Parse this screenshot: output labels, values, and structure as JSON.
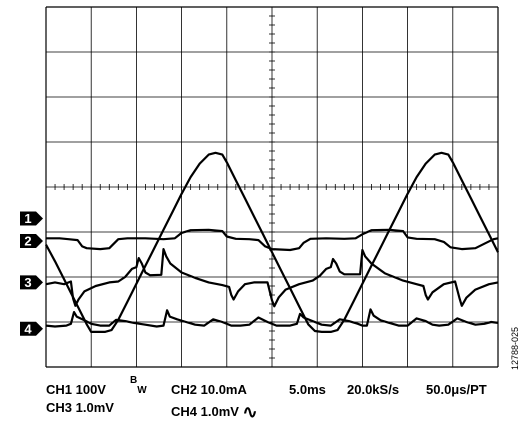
{
  "chart_data": {
    "type": "line",
    "title": "",
    "grid": true,
    "divisions": {
      "horizontal": 10,
      "vertical": 8
    },
    "x_scale": "5.0ms/div",
    "channel_markers": [
      "1",
      "2",
      "3",
      "4"
    ],
    "series": [
      {
        "channel": "1",
        "scale": "100V",
        "baseline_div": 3.3,
        "points": [
          [
            0,
            2.72
          ],
          [
            0.2,
            2.35
          ],
          [
            0.4,
            1.95
          ],
          [
            0.6,
            1.55
          ],
          [
            0.8,
            1.15
          ],
          [
            0.9,
            0.95
          ],
          [
            1.0,
            0.78
          ],
          [
            1.1,
            0.78
          ],
          [
            1.3,
            0.78
          ],
          [
            1.45,
            0.82
          ],
          [
            1.6,
            1.05
          ],
          [
            1.8,
            1.45
          ],
          [
            2.0,
            1.85
          ],
          [
            2.2,
            2.25
          ],
          [
            2.4,
            2.65
          ],
          [
            2.6,
            3.05
          ],
          [
            2.8,
            3.45
          ],
          [
            3.0,
            3.85
          ],
          [
            3.2,
            4.22
          ],
          [
            3.4,
            4.52
          ],
          [
            3.6,
            4.72
          ],
          [
            3.75,
            4.76
          ],
          [
            3.9,
            4.72
          ],
          [
            4.0,
            4.55
          ],
          [
            4.2,
            4.15
          ],
          [
            4.4,
            3.75
          ],
          [
            4.6,
            3.35
          ],
          [
            4.8,
            2.95
          ],
          [
            5.0,
            2.55
          ],
          [
            5.2,
            2.15
          ],
          [
            5.4,
            1.75
          ],
          [
            5.6,
            1.35
          ],
          [
            5.8,
            0.95
          ],
          [
            5.95,
            0.8
          ],
          [
            6.1,
            0.78
          ],
          [
            6.3,
            0.78
          ],
          [
            6.45,
            0.82
          ],
          [
            6.6,
            1.05
          ],
          [
            6.8,
            1.45
          ],
          [
            7.0,
            1.85
          ],
          [
            7.2,
            2.25
          ],
          [
            7.4,
            2.65
          ],
          [
            7.6,
            3.05
          ],
          [
            7.8,
            3.45
          ],
          [
            8.0,
            3.85
          ],
          [
            8.2,
            4.22
          ],
          [
            8.4,
            4.52
          ],
          [
            8.6,
            4.72
          ],
          [
            8.75,
            4.76
          ],
          [
            8.9,
            4.72
          ],
          [
            9.0,
            4.55
          ],
          [
            9.2,
            4.15
          ],
          [
            9.4,
            3.75
          ],
          [
            9.6,
            3.35
          ],
          [
            9.8,
            2.95
          ],
          [
            10,
            2.55
          ]
        ]
      },
      {
        "channel": "2",
        "scale": "10.0mA",
        "baseline_div": 2.8,
        "points": [
          [
            0,
            2.86
          ],
          [
            0.3,
            2.86
          ],
          [
            0.5,
            2.84
          ],
          [
            0.7,
            2.82
          ],
          [
            0.8,
            2.68
          ],
          [
            0.9,
            2.64
          ],
          [
            1.2,
            2.62
          ],
          [
            1.4,
            2.64
          ],
          [
            1.5,
            2.74
          ],
          [
            1.6,
            2.84
          ],
          [
            1.8,
            2.86
          ],
          [
            2.2,
            2.86
          ],
          [
            2.6,
            2.84
          ],
          [
            2.85,
            2.86
          ],
          [
            3.0,
            2.98
          ],
          [
            3.2,
            3.04
          ],
          [
            3.6,
            3.05
          ],
          [
            3.9,
            3.02
          ],
          [
            4.0,
            2.9
          ],
          [
            4.2,
            2.85
          ],
          [
            4.5,
            2.84
          ],
          [
            4.7,
            2.82
          ],
          [
            4.85,
            2.68
          ],
          [
            5.0,
            2.62
          ],
          [
            5.4,
            2.6
          ],
          [
            5.6,
            2.64
          ],
          [
            5.7,
            2.76
          ],
          [
            5.85,
            2.85
          ],
          [
            6.2,
            2.86
          ],
          [
            6.6,
            2.85
          ],
          [
            6.85,
            2.86
          ],
          [
            7.0,
            2.95
          ],
          [
            7.2,
            3.04
          ],
          [
            7.6,
            3.05
          ],
          [
            7.9,
            3.02
          ],
          [
            8.0,
            2.88
          ],
          [
            8.2,
            2.85
          ],
          [
            8.6,
            2.84
          ],
          [
            8.8,
            2.78
          ],
          [
            8.95,
            2.66
          ],
          [
            9.2,
            2.62
          ],
          [
            9.5,
            2.64
          ],
          [
            9.7,
            2.74
          ],
          [
            9.9,
            2.84
          ],
          [
            10,
            2.86
          ]
        ]
      },
      {
        "channel": "3",
        "scale": "1.0mV",
        "baseline_div": 1.88,
        "points": [
          [
            0,
            1.84
          ],
          [
            0.2,
            1.88
          ],
          [
            0.4,
            1.84
          ],
          [
            0.55,
            1.9
          ],
          [
            0.6,
            1.52
          ],
          [
            0.65,
            1.36
          ],
          [
            0.72,
            1.5
          ],
          [
            0.85,
            1.68
          ],
          [
            1.1,
            1.8
          ],
          [
            1.4,
            1.88
          ],
          [
            1.6,
            1.9
          ],
          [
            1.75,
            2.0
          ],
          [
            1.9,
            2.18
          ],
          [
            2.0,
            2.22
          ],
          [
            2.05,
            2.42
          ],
          [
            2.12,
            2.3
          ],
          [
            2.2,
            2.1
          ],
          [
            2.3,
            2.04
          ],
          [
            2.55,
            2.05
          ],
          [
            2.6,
            2.62
          ],
          [
            2.66,
            2.46
          ],
          [
            2.75,
            2.3
          ],
          [
            3.0,
            2.1
          ],
          [
            3.3,
            1.98
          ],
          [
            3.6,
            1.88
          ],
          [
            3.9,
            1.82
          ],
          [
            4.05,
            1.78
          ],
          [
            4.1,
            1.6
          ],
          [
            4.15,
            1.5
          ],
          [
            4.25,
            1.68
          ],
          [
            4.4,
            1.84
          ],
          [
            4.6,
            1.88
          ],
          [
            4.9,
            1.88
          ],
          [
            5.0,
            1.48
          ],
          [
            5.05,
            1.35
          ],
          [
            5.15,
            1.55
          ],
          [
            5.3,
            1.72
          ],
          [
            5.6,
            1.84
          ],
          [
            5.9,
            1.92
          ],
          [
            6.05,
            2.02
          ],
          [
            6.2,
            2.18
          ],
          [
            6.3,
            2.22
          ],
          [
            6.35,
            2.4
          ],
          [
            6.42,
            2.3
          ],
          [
            6.5,
            2.12
          ],
          [
            6.6,
            2.06
          ],
          [
            6.8,
            2.06
          ],
          [
            6.95,
            2.06
          ],
          [
            7.0,
            2.6
          ],
          [
            7.06,
            2.46
          ],
          [
            7.2,
            2.3
          ],
          [
            7.5,
            2.08
          ],
          [
            7.9,
            1.92
          ],
          [
            8.2,
            1.84
          ],
          [
            8.35,
            1.8
          ],
          [
            8.4,
            1.6
          ],
          [
            8.45,
            1.5
          ],
          [
            8.55,
            1.66
          ],
          [
            8.8,
            1.84
          ],
          [
            9.05,
            1.9
          ],
          [
            9.15,
            1.52
          ],
          [
            9.2,
            1.36
          ],
          [
            9.3,
            1.54
          ],
          [
            9.5,
            1.72
          ],
          [
            9.8,
            1.84
          ],
          [
            10,
            1.88
          ]
        ]
      },
      {
        "channel": "4",
        "scale": "1.0mV",
        "baseline_div": 0.85,
        "points": [
          [
            0,
            0.92
          ],
          [
            0.2,
            0.9
          ],
          [
            0.45,
            0.92
          ],
          [
            0.55,
            0.96
          ],
          [
            0.62,
            1.22
          ],
          [
            0.68,
            1.12
          ],
          [
            0.85,
            1.04
          ],
          [
            1.0,
            0.96
          ],
          [
            1.2,
            0.92
          ],
          [
            1.4,
            0.92
          ],
          [
            1.55,
            1.05
          ],
          [
            1.75,
            1.02
          ],
          [
            1.95,
            0.98
          ],
          [
            2.2,
            0.94
          ],
          [
            2.45,
            0.9
          ],
          [
            2.6,
            0.92
          ],
          [
            2.68,
            1.26
          ],
          [
            2.74,
            1.12
          ],
          [
            2.9,
            1.06
          ],
          [
            3.1,
            1.0
          ],
          [
            3.3,
            0.94
          ],
          [
            3.5,
            0.92
          ],
          [
            3.7,
            1.06
          ],
          [
            3.9,
            1.0
          ],
          [
            4.1,
            0.92
          ],
          [
            4.3,
            0.92
          ],
          [
            4.5,
            0.94
          ],
          [
            4.7,
            1.1
          ],
          [
            4.9,
            1.0
          ],
          [
            5.1,
            0.92
          ],
          [
            5.4,
            0.92
          ],
          [
            5.55,
            0.96
          ],
          [
            5.62,
            1.18
          ],
          [
            5.7,
            1.1
          ],
          [
            5.9,
            1.02
          ],
          [
            6.1,
            0.94
          ],
          [
            6.3,
            0.92
          ],
          [
            6.5,
            1.06
          ],
          [
            6.7,
            1.02
          ],
          [
            6.9,
            0.96
          ],
          [
            7.0,
            0.92
          ],
          [
            7.1,
            0.92
          ],
          [
            7.18,
            1.28
          ],
          [
            7.25,
            1.14
          ],
          [
            7.4,
            1.04
          ],
          [
            7.6,
            0.98
          ],
          [
            7.8,
            0.92
          ],
          [
            8.0,
            0.92
          ],
          [
            8.2,
            1.08
          ],
          [
            8.4,
            1.02
          ],
          [
            8.55,
            0.94
          ],
          [
            8.7,
            0.92
          ],
          [
            8.9,
            0.94
          ],
          [
            9.1,
            1.08
          ],
          [
            9.3,
            1.0
          ],
          [
            9.5,
            0.94
          ],
          [
            9.7,
            0.96
          ],
          [
            9.85,
            1.0
          ],
          [
            10,
            0.98
          ]
        ]
      }
    ]
  },
  "readouts": {
    "line1": {
      "ch1": "CH1  100V",
      "bw_b": "B",
      "bw_w": "W",
      "ch2": "CH2  10.0mA",
      "timebase": "5.0ms",
      "sample_rate": "20.0kS/s",
      "resolution": "50.0μs/PT"
    },
    "line2": {
      "ch3": "CH3  1.0mV",
      "ch4": "CH4  1.0mV",
      "coupling_symbol": "∿"
    }
  },
  "figure_id": "12788-025",
  "colors": {
    "trace": "#000000",
    "grid": "#000000",
    "marker_fill": "#000000",
    "marker_text": "#ffffff"
  }
}
